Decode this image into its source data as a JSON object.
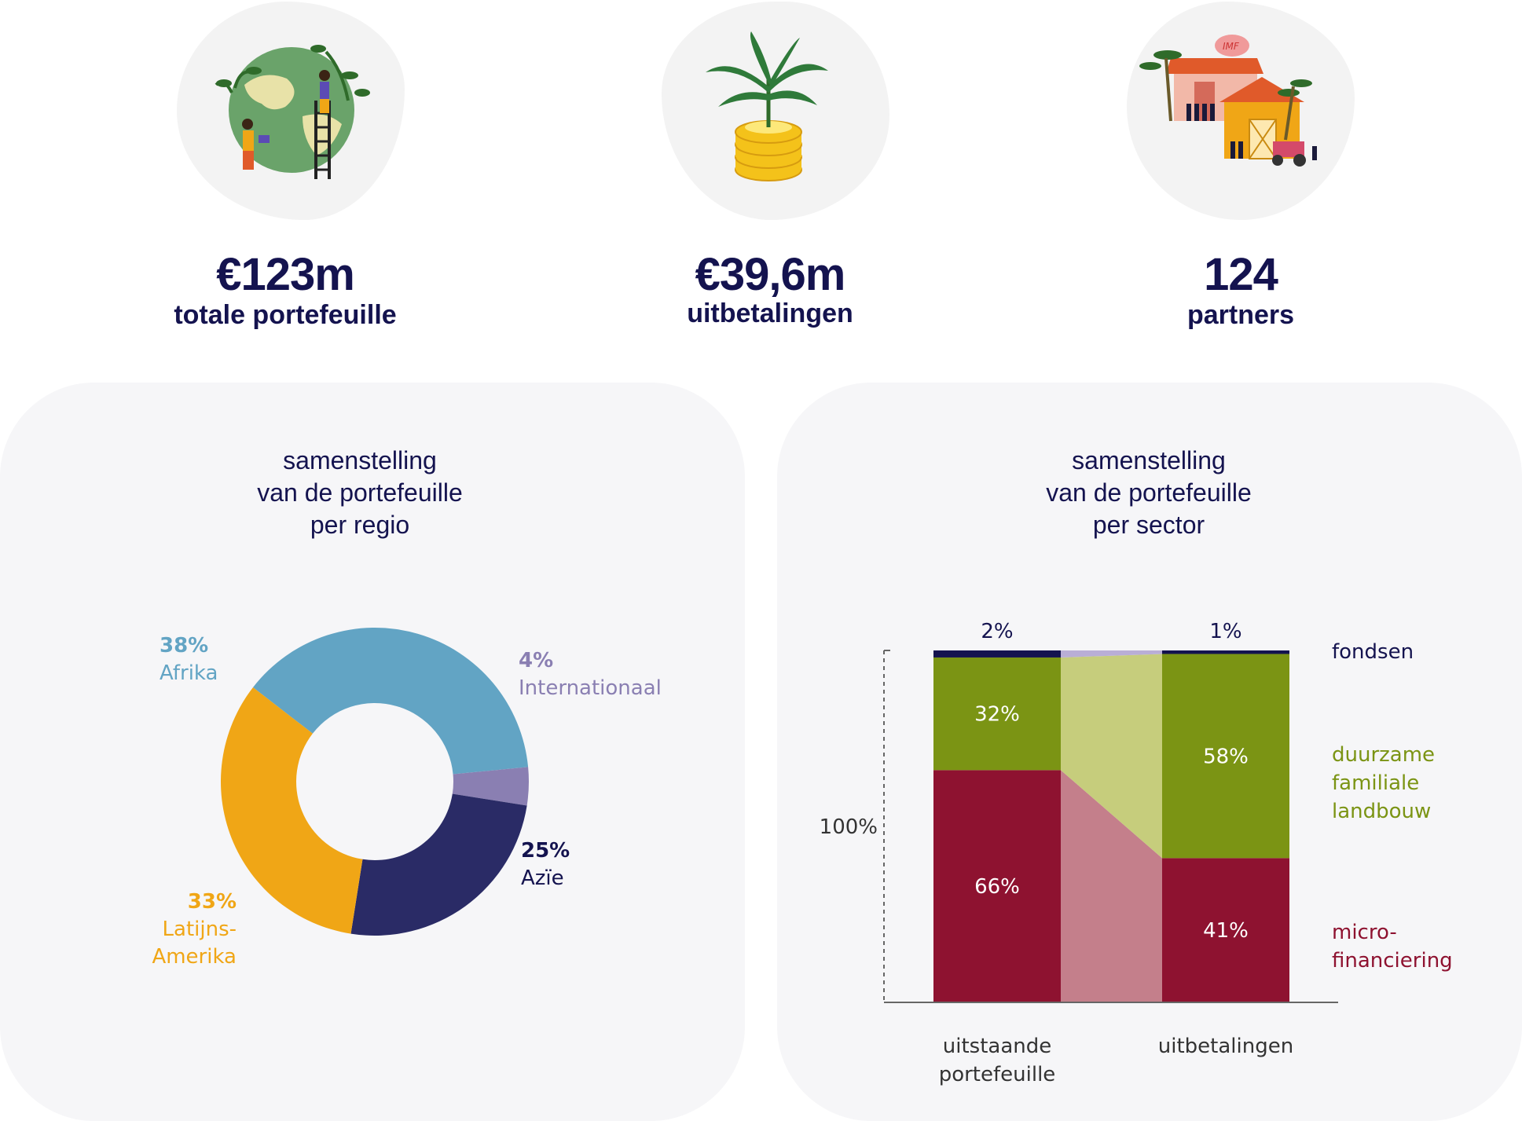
{
  "kpis": [
    {
      "value": "€123m",
      "label": "totale portefeuille",
      "icon": "globe-planting-icon"
    },
    {
      "value": "€39,6m",
      "label": "uitbetalingen",
      "icon": "plant-coins-icon"
    },
    {
      "value": "124",
      "label": "partners",
      "icon": "imf-farm-icon"
    }
  ],
  "region_chart": {
    "title": [
      "samenstelling",
      "van de portefeuille",
      "per regio"
    ]
  },
  "sector_chart": {
    "title": [
      "samenstelling",
      "van de portefeuille",
      "per sector"
    ]
  },
  "colors": {
    "navy": "#14134f",
    "afrika": "#62a4c4",
    "internationaal": "#8a7fb2",
    "azie": "#2a2b66",
    "latijns_amerika": "#f0a616",
    "fondsen": "#14134f",
    "duurzame_familiale_landbouw": "#7b9414",
    "microfinanciering": "#8e1230"
  },
  "chart_data": [
    {
      "type": "pie",
      "title": "samenstelling van de portefeuille per regio",
      "slices": [
        {
          "name": "Afrika",
          "value": 38,
          "label": "38%",
          "name_lines": [
            "Afrika"
          ]
        },
        {
          "name": "Internationaal",
          "value": 4,
          "label": "4%",
          "name_lines": [
            "Internationaal"
          ]
        },
        {
          "name": "Azïe",
          "value": 25,
          "label": "25%",
          "name_lines": [
            "Azïe"
          ]
        },
        {
          "name": "Latijns-Amerika",
          "value": 33,
          "label": "33%",
          "name_lines": [
            "Latijns-",
            "Amerika"
          ]
        }
      ]
    },
    {
      "type": "bar",
      "stacked": true,
      "title": "samenstelling van de portefeuille per sector",
      "categories": [
        {
          "name": "uitstaande portefeuille",
          "lines": [
            "uitstaande",
            "portefeuille"
          ]
        },
        {
          "name": "uitbetalingen",
          "lines": [
            "uitbetalingen"
          ]
        }
      ],
      "series": [
        {
          "name": "micro-financiering",
          "name_lines": [
            "micro-",
            "financiering"
          ],
          "values": [
            66,
            41
          ],
          "labels": [
            "66%",
            "41%"
          ]
        },
        {
          "name": "duurzame familiale landbouw",
          "name_lines": [
            "duurzame",
            "familiale",
            "landbouw"
          ],
          "values": [
            32,
            58
          ],
          "labels": [
            "32%",
            "58%"
          ]
        },
        {
          "name": "fondsen",
          "name_lines": [
            "fondsen"
          ],
          "values": [
            2,
            1
          ],
          "labels": [
            "2%",
            "1%"
          ]
        }
      ],
      "ylabel": "100%",
      "ylim": [
        0,
        100
      ]
    }
  ]
}
